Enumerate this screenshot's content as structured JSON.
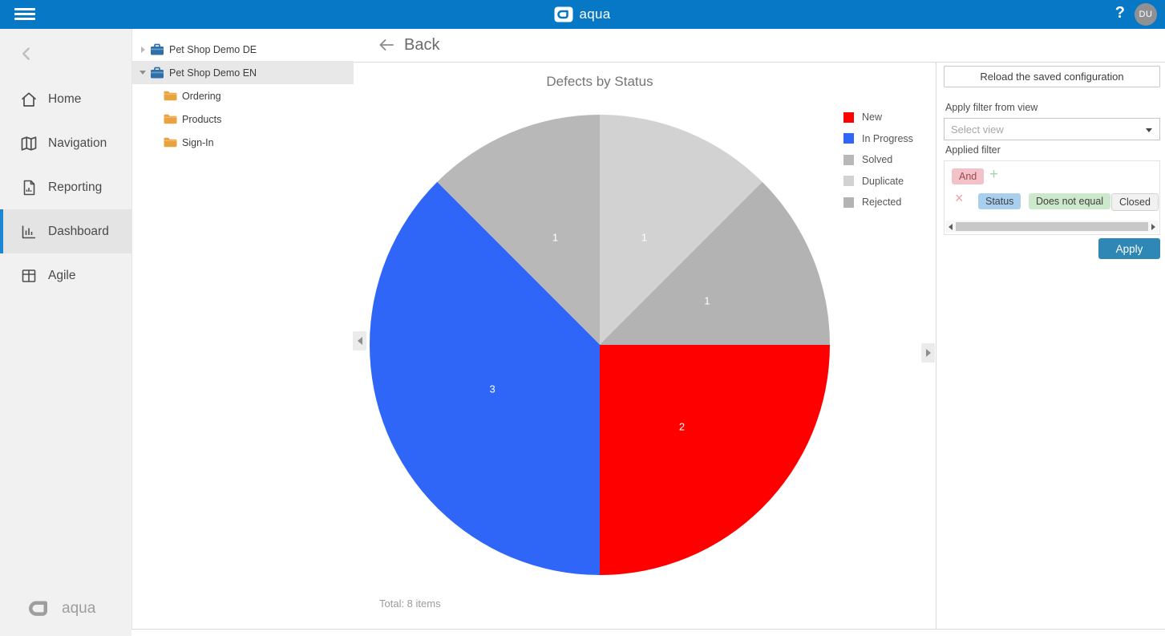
{
  "topbar": {
    "brand": "aqua",
    "help_label": "?",
    "avatar_initials": "DU"
  },
  "sidebar": {
    "items": [
      {
        "label": "Home",
        "selected": false
      },
      {
        "label": "Navigation",
        "selected": false
      },
      {
        "label": "Reporting",
        "selected": false
      },
      {
        "label": "Dashboard",
        "selected": true
      },
      {
        "label": "Agile",
        "selected": false
      }
    ],
    "footer_brand": "aqua"
  },
  "tree": {
    "rows": [
      {
        "label": "Pet Shop Demo DE",
        "type": "project",
        "expanded": false,
        "selected": false
      },
      {
        "label": "Pet Shop Demo EN",
        "type": "project",
        "expanded": true,
        "selected": true
      },
      {
        "label": "Ordering",
        "type": "folder"
      },
      {
        "label": "Products",
        "type": "folder"
      },
      {
        "label": "Sign-In",
        "type": "folder"
      }
    ]
  },
  "main": {
    "back_label": "Back"
  },
  "chart_data": {
    "type": "pie",
    "title": "Defects by Status",
    "categories": [
      "New",
      "In Progress",
      "Solved",
      "Duplicate",
      "Rejected"
    ],
    "values": [
      2,
      3,
      1,
      1,
      1
    ],
    "colors": [
      "#fe0000",
      "#2f66f8",
      "#b8b8b8",
      "#d2d2d2",
      "#b3b3b3"
    ],
    "data_labels": [
      "2",
      "3",
      "1",
      "1",
      "1"
    ],
    "label_color": "#ffffff",
    "start_angle_deg": 90,
    "label_radius_ratio": 0.505,
    "legend_position": "right",
    "total_label": "Total: 8 items"
  },
  "filter_panel": {
    "reload_button": "Reload the saved configuration",
    "apply_filter_from_view_label": "Apply filter from view",
    "select_view_placeholder": "Select view",
    "applied_filter_label": "Applied filter",
    "group_operator": "And",
    "add_condition_label": "+",
    "remove_condition_label": "×",
    "condition": {
      "field": "Status",
      "operator": "Does not equal",
      "value": "Closed"
    },
    "apply_button": "Apply"
  },
  "theme": {
    "topbar_color": "#0778c6",
    "sidebar_selected_accent": "#1b87d4",
    "apply_button_color": "#2e87b5",
    "and_chip_bg": "#f2c2c8",
    "field_chip_bg": "#a9cfee",
    "operator_chip_bg": "#cde9cb",
    "value_chip_bg": "#f1f1f1",
    "divider_color": "#d9d9d9"
  }
}
